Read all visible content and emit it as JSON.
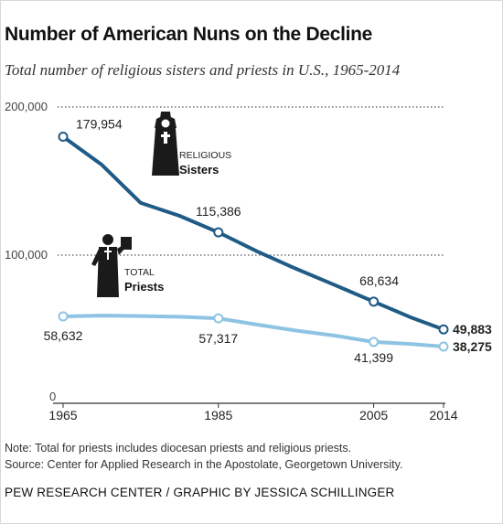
{
  "title": "Number of American Nuns on the Decline",
  "subtitle": "Total number of religious sisters and priests in U.S., 1965-2014",
  "note": "Note: Total for priests includes diocesan priests and religious priests.",
  "source": "Source: Center for Applied Research in the Apostolate, Georgetown University.",
  "credit": {
    "org": "PEW RESEARCH CENTER",
    "separator": " / ",
    "byline": "GRAPHIC BY JESSICA SCHILLINGER"
  },
  "colors": {
    "sisters": "#205b86",
    "priests": "#8ec3e3",
    "gridline": "#555555",
    "axis": "#333333"
  },
  "chart_data": {
    "type": "line",
    "title": "Number of American Nuns on the Decline",
    "subtitle": "Total number of religious sisters and priests in U.S., 1965-2014",
    "x": [
      1965,
      1970,
      1975,
      1980,
      1985,
      1990,
      1995,
      2000,
      2005,
      2010,
      2014
    ],
    "xticks": [
      "1965",
      "1985",
      "2005",
      "2014"
    ],
    "xlim": [
      1965,
      2014
    ],
    "ylim": [
      0,
      200000
    ],
    "yticks": [
      {
        "value": 0,
        "label": "0"
      },
      {
        "value": 100000,
        "label": "100,000"
      },
      {
        "value": 200000,
        "label": "200,000"
      }
    ],
    "grid": "dotted at 100,000 and 200,000",
    "series": [
      {
        "name": "Sisters",
        "label_top": "RELIGIOUS",
        "label_main": "Sisters",
        "icon": "nun-icon",
        "color": "#205b86",
        "values": [
          179954,
          160931,
          135225,
          126517,
          115386,
          102504,
          90809,
          79814,
          68634,
          57544,
          49883
        ],
        "points": [
          {
            "x": 1965,
            "y": 179954,
            "label": "179,954"
          },
          {
            "x": 1985,
            "y": 115386,
            "label": "115,386"
          },
          {
            "x": 2005,
            "y": 68634,
            "label": "68,634"
          },
          {
            "x": 2014,
            "y": 49883,
            "label": "49,883"
          }
        ]
      },
      {
        "name": "Priests",
        "label_top": "TOTAL",
        "label_main": "Priests",
        "icon": "priest-icon",
        "color": "#8ec3e3",
        "values": [
          58632,
          59192,
          58909,
          58398,
          57317,
          53088,
          49054,
          45699,
          41399,
          39993,
          38275
        ],
        "points": [
          {
            "x": 1965,
            "y": 58632,
            "label": "58,632"
          },
          {
            "x": 1985,
            "y": 57317,
            "label": "57,317"
          },
          {
            "x": 2005,
            "y": 41399,
            "label": "41,399"
          },
          {
            "x": 2014,
            "y": 38275,
            "label": "38,275"
          }
        ]
      }
    ]
  }
}
